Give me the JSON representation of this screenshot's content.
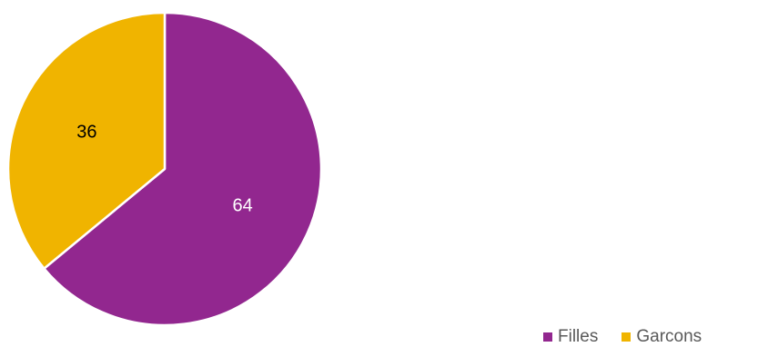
{
  "chart_data": {
    "type": "pie",
    "title": "",
    "categories": [
      "Filles",
      "Garcons"
    ],
    "values": [
      64,
      36
    ],
    "colors": [
      "#92278f",
      "#f0b400"
    ],
    "label_colors": [
      "#ffffff",
      "#000000"
    ],
    "legend_position": "bottom-right",
    "legend": [
      {
        "name": "Filles",
        "color": "#92278f"
      },
      {
        "name": "Garcons",
        "color": "#f0b400"
      }
    ]
  }
}
